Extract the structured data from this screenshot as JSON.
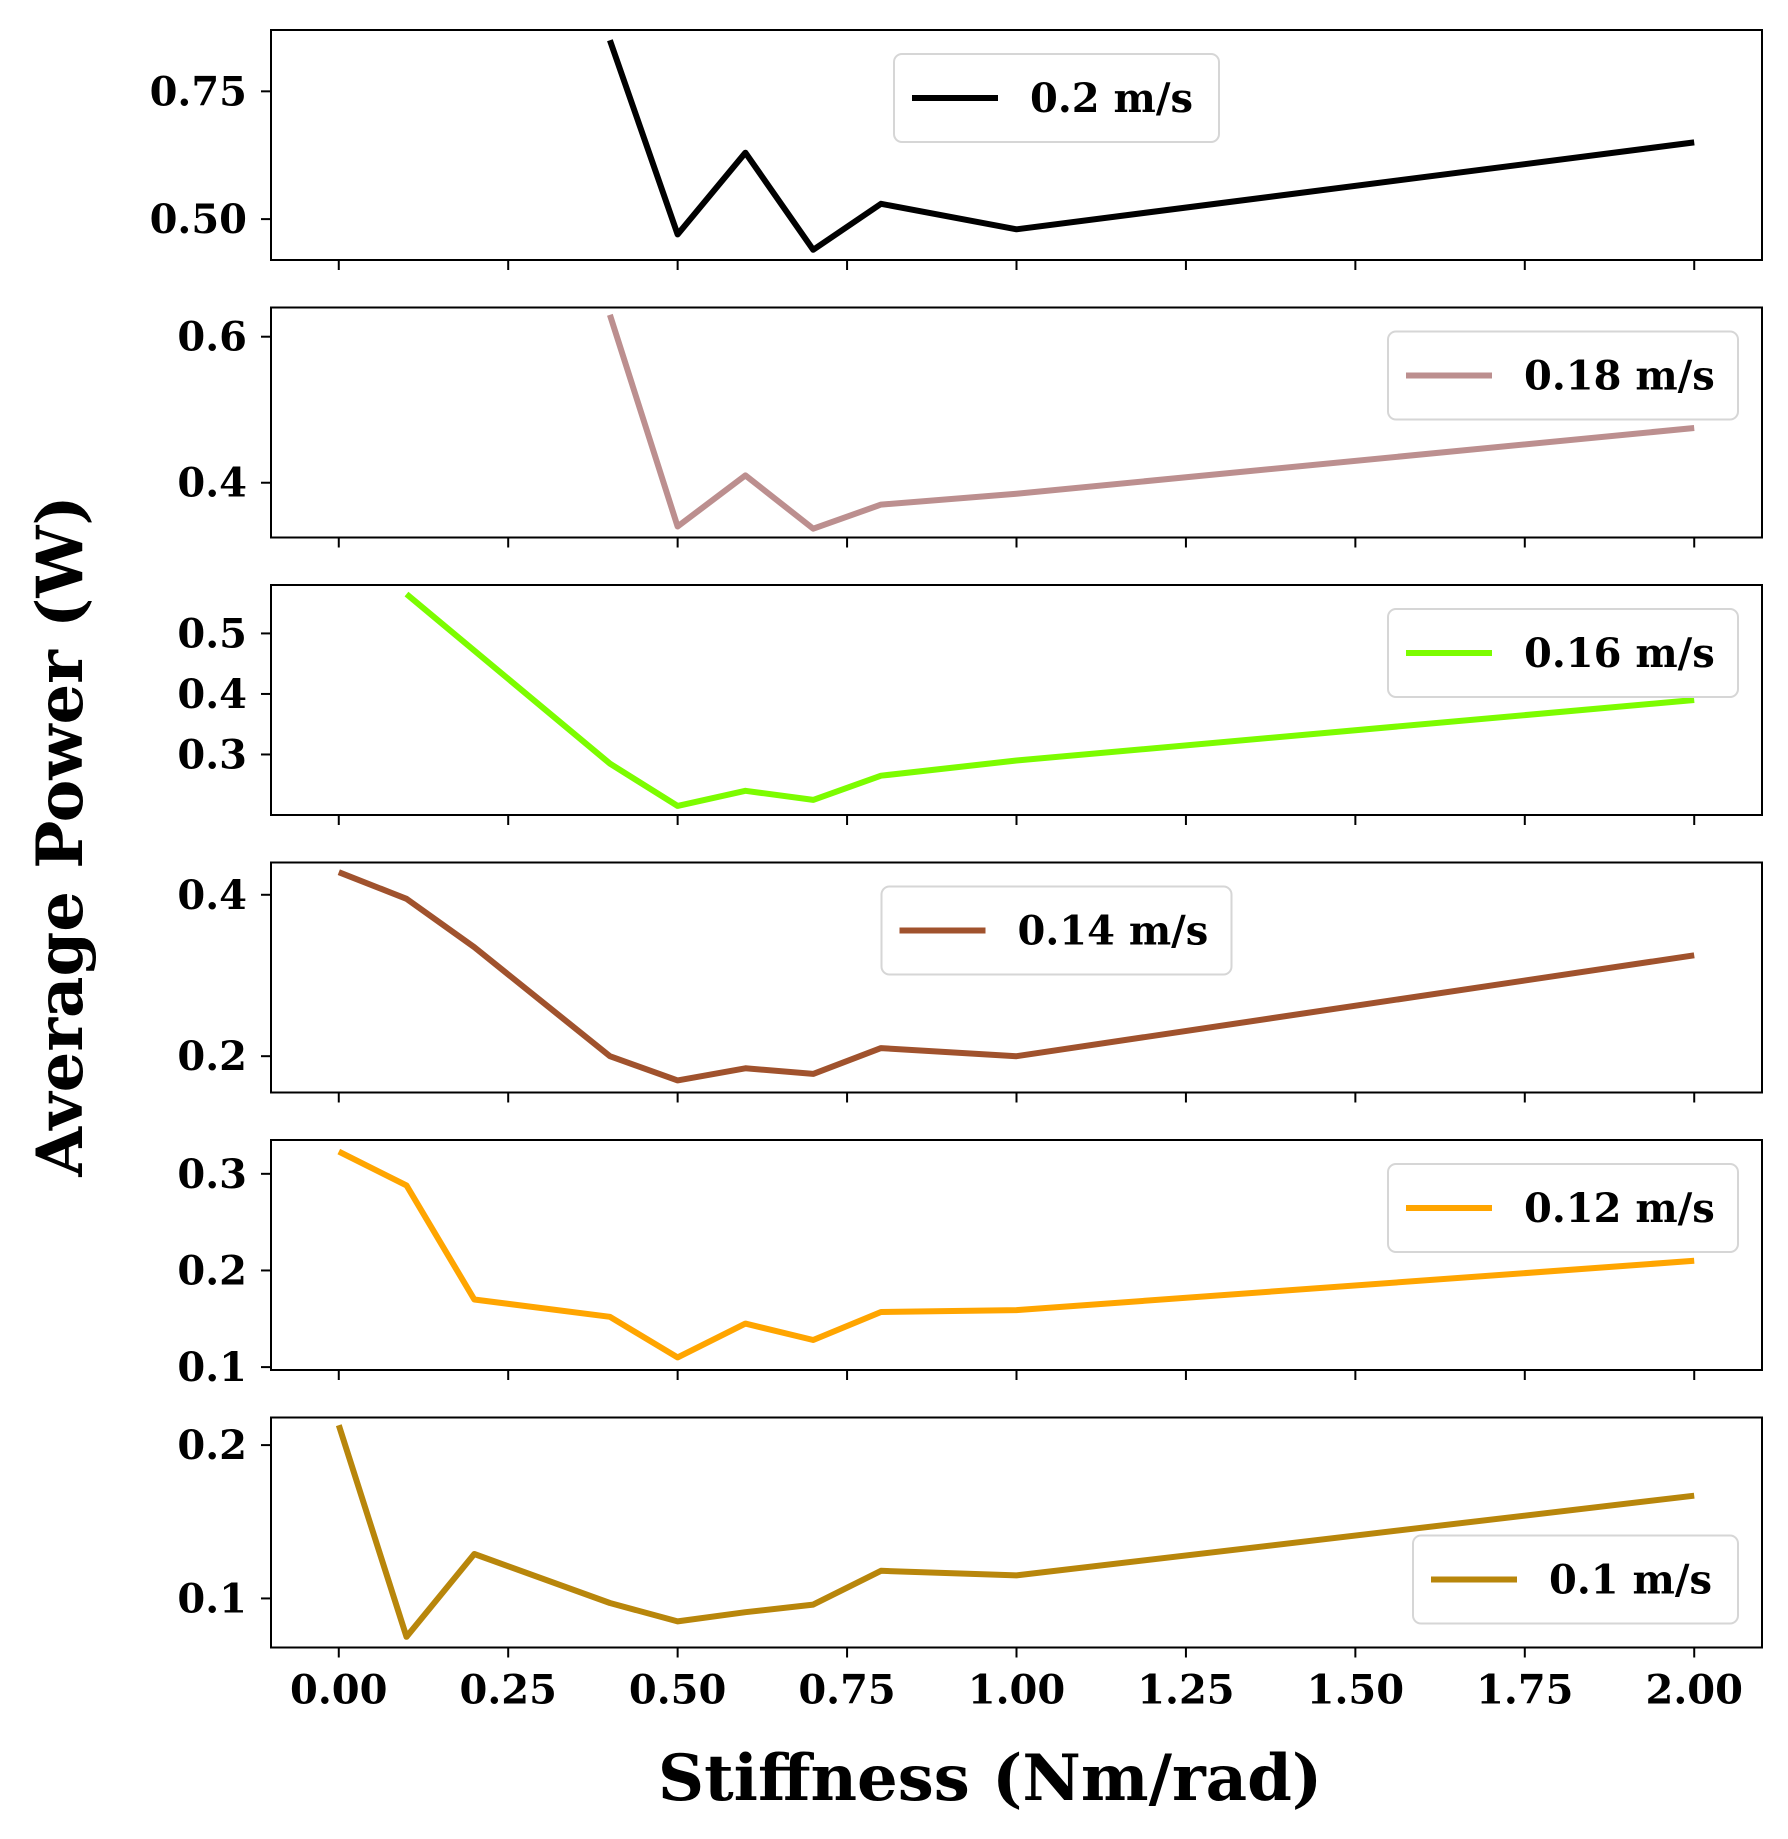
{
  "chart_data": {
    "type": "line",
    "xlabel": "Stiffness (Nm/rad)",
    "ylabel": "Average Power (W)",
    "x_ticks": [
      "0.00",
      "0.25",
      "0.50",
      "0.75",
      "1.00",
      "1.25",
      "1.50",
      "1.75",
      "2.00"
    ],
    "xlim": [
      -0.1,
      2.1
    ],
    "grid": false,
    "panels": [
      {
        "legend": "0.2 m/s",
        "legend_position": "top-center",
        "color": "#000000",
        "ylim": [
          0.42,
          0.87
        ],
        "y_ticks": [
          "0.50",
          "0.75"
        ],
        "x": [
          0.4,
          0.5,
          0.6,
          0.7,
          0.8,
          1.0,
          2.0
        ],
        "y": [
          0.85,
          0.47,
          0.63,
          0.44,
          0.53,
          0.48,
          0.65
        ]
      },
      {
        "legend": "0.18 m/s",
        "legend_position": "top-right",
        "color": "#bc8f8f",
        "ylim": [
          0.325,
          0.64
        ],
        "y_ticks": [
          "0.4",
          "0.6"
        ],
        "x": [
          0.4,
          0.5,
          0.6,
          0.7,
          0.8,
          1.0,
          2.0
        ],
        "y": [
          0.63,
          0.34,
          0.41,
          0.337,
          0.37,
          0.385,
          0.475
        ]
      },
      {
        "legend": "0.16 m/s",
        "legend_position": "top-right",
        "color": "#7cfc00",
        "ylim": [
          0.2,
          0.58
        ],
        "y_ticks": [
          "0.3",
          "0.4",
          "0.5"
        ],
        "x": [
          0.1,
          0.4,
          0.5,
          0.6,
          0.7,
          0.8,
          1.0,
          2.0
        ],
        "y": [
          0.565,
          0.285,
          0.215,
          0.24,
          0.225,
          0.265,
          0.29,
          0.39
        ]
      },
      {
        "legend": "0.14 m/s",
        "legend_position": "top-center",
        "color": "#a0522d",
        "ylim": [
          0.155,
          0.44
        ],
        "y_ticks": [
          "0.2",
          "0.4"
        ],
        "x": [
          0.0,
          0.1,
          0.2,
          0.4,
          0.5,
          0.6,
          0.7,
          0.8,
          1.0,
          2.0
        ],
        "y": [
          0.428,
          0.395,
          0.335,
          0.2,
          0.17,
          0.185,
          0.178,
          0.21,
          0.2,
          0.325
        ]
      },
      {
        "legend": "0.12 m/s",
        "legend_position": "top-right",
        "color": "#ffa500",
        "ylim": [
          0.097,
          0.335
        ],
        "y_ticks": [
          "0.1",
          "0.2",
          "0.3"
        ],
        "x": [
          0.0,
          0.1,
          0.2,
          0.4,
          0.5,
          0.6,
          0.7,
          0.8,
          1.0,
          2.0
        ],
        "y": [
          0.323,
          0.288,
          0.17,
          0.152,
          0.11,
          0.145,
          0.128,
          0.157,
          0.159,
          0.21
        ]
      },
      {
        "legend": "0.1 m/s",
        "legend_position": "bottom-right",
        "color": "#b8860b",
        "ylim": [
          0.068,
          0.218
        ],
        "y_ticks": [
          "0.1",
          "0.2"
        ],
        "x": [
          0.0,
          0.1,
          0.2,
          0.4,
          0.5,
          0.6,
          0.7,
          0.8,
          1.0,
          2.0
        ],
        "y": [
          0.213,
          0.075,
          0.129,
          0.097,
          0.085,
          0.091,
          0.096,
          0.118,
          0.115,
          0.167
        ]
      }
    ]
  }
}
